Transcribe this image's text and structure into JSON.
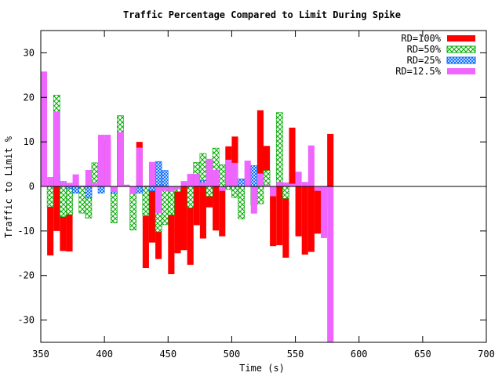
{
  "chart_data": {
    "type": "bar",
    "title": "Traffic Percentage Compared to Limit During Spike",
    "xlabel": "Time (s)",
    "ylabel": "Traffic to Limit %",
    "xlim": [
      350,
      700
    ],
    "ylim": [
      -35,
      35
    ],
    "xticks": [
      350,
      400,
      450,
      500,
      550,
      600,
      650,
      700
    ],
    "yticks": [
      -30,
      -20,
      -10,
      0,
      10,
      20,
      30
    ],
    "bin_width": 5,
    "bin_start": 350,
    "legend_position": "top-right",
    "grid": false,
    "series": [
      {
        "name": "RD=100%",
        "color": "#ff0000",
        "pattern": "solid",
        "values": [
          0,
          -15.5,
          -10,
          -14.5,
          -14.6,
          0,
          0,
          0,
          0,
          10.5,
          10.5,
          0,
          11.5,
          0,
          0,
          10,
          -18.3,
          -12.6,
          -16.3,
          -4.5,
          -19.7,
          -15,
          -14.3,
          -17.6,
          -8.7,
          -11.7,
          -4.7,
          -9.9,
          -11.2,
          9,
          11.2,
          0,
          0,
          0,
          17.1,
          9.1,
          -13.4,
          -13.2,
          -16,
          13.2,
          -11.2,
          -15.3,
          -14.7,
          -10.6,
          -5,
          11.8,
          0
        ]
      },
      {
        "name": "RD=50%",
        "color": "#00aa00",
        "pattern": "crosshatch",
        "values": [
          0,
          -4.6,
          20.5,
          -6.8,
          -6.3,
          -0.3,
          -6,
          -7.1,
          5.3,
          0,
          0,
          -8.2,
          15.9,
          0,
          -9.8,
          0,
          -6.6,
          0,
          -10.2,
          -8.6,
          -6.4,
          -1.2,
          0,
          -4.8,
          5.4,
          7.4,
          -2.2,
          8.6,
          4.9,
          -0.7,
          -2.5,
          -7.3,
          0,
          -4.2,
          -3.9,
          3.6,
          0,
          16.6,
          -2.7,
          0,
          0
        ]
      },
      {
        "name": "RD=25%",
        "color": "#0066ff",
        "pattern": "crosshatch",
        "values": [
          0,
          0,
          2.6,
          1.1,
          -0.4,
          -1.5,
          0,
          -2.6,
          0,
          -1.5,
          0,
          -1.5,
          0,
          0,
          0,
          -1.5,
          0,
          -1,
          5.6,
          3.6,
          0,
          0,
          0,
          0,
          0,
          1.3,
          0,
          0,
          0,
          0,
          0,
          1.7,
          0,
          4.7,
          0
        ]
      },
      {
        "name": "RD=12.5%",
        "color": "#ee66ff",
        "pattern": "solid",
        "values": [
          25.8,
          2.1,
          16.8,
          1,
          0.8,
          2.7,
          0.2,
          3.7,
          0.8,
          11.6,
          11.6,
          -1.2,
          12.2,
          0.4,
          -1.7,
          8.7,
          0.2,
          5.5,
          -6,
          -1,
          -1.2,
          -0.6,
          1.2,
          2.8,
          2.8,
          0.9,
          6.2,
          3.7,
          -1,
          6,
          5.3,
          0.1,
          5.8,
          -6.1,
          2.9,
          0.4,
          -2.2,
          1,
          0.9,
          0.6,
          3.3,
          1,
          9.2,
          -1,
          -11.6,
          -35
        ]
      }
    ]
  }
}
